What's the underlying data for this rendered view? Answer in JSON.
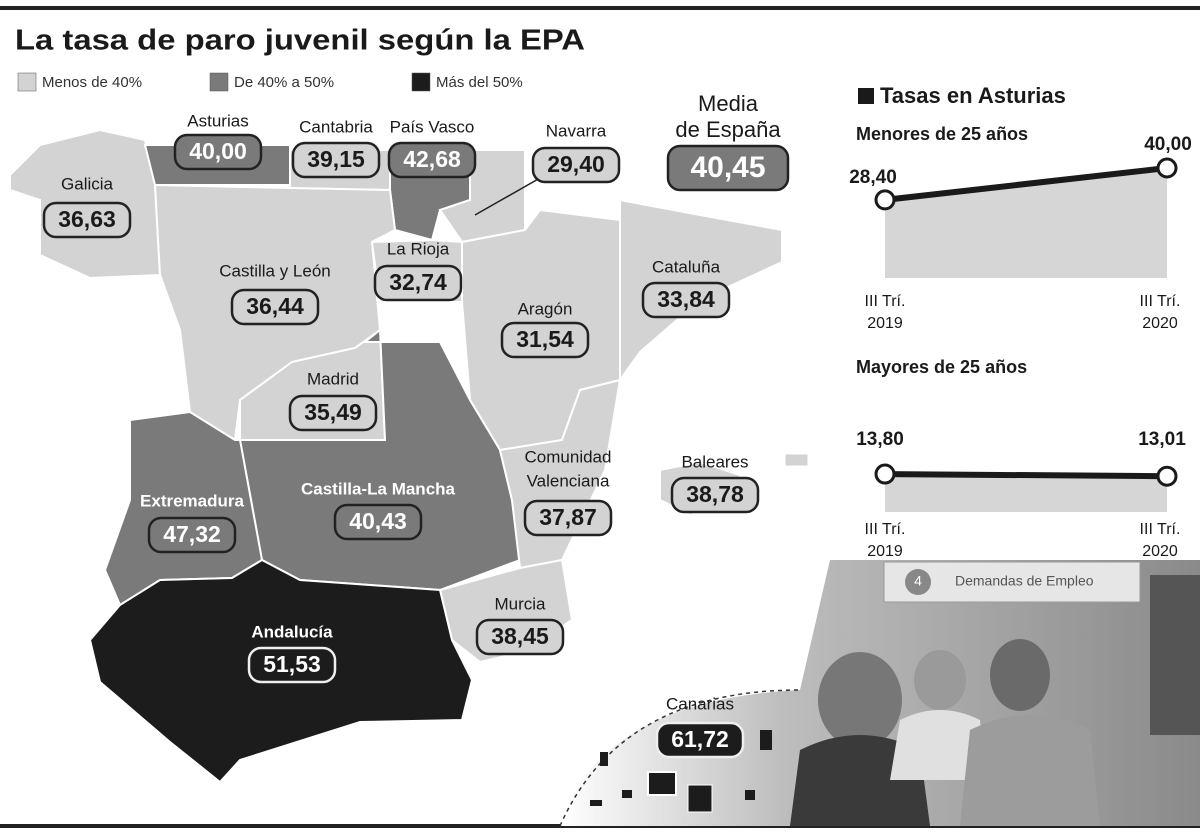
{
  "header": {
    "title": "La tasa de paro juvenil según la EPA"
  },
  "legend": [
    {
      "label": "Menos de 40%",
      "color": "#d3d3d3"
    },
    {
      "label": "De 40% a 50%",
      "color": "#7a7a7a"
    },
    {
      "label": "Más del 50%",
      "color": "#1c1c1c"
    }
  ],
  "regions": [
    {
      "name": "Galicia",
      "value": "36,63",
      "color": "#d3d3d3"
    },
    {
      "name": "Asturias",
      "value": "40,00",
      "color": "#7a7a7a"
    },
    {
      "name": "Cantabria",
      "value": "39,15",
      "color": "#d3d3d3"
    },
    {
      "name": "País Vasco",
      "value": "42,68",
      "color": "#7a7a7a"
    },
    {
      "name": "Navarra",
      "value": "29,40",
      "color": "#d3d3d3"
    },
    {
      "name": "Castilla y León",
      "value": "36,44",
      "color": "#d3d3d3"
    },
    {
      "name": "La Rioja",
      "value": "32,74",
      "color": "#d3d3d3"
    },
    {
      "name": "Aragón",
      "value": "31,54",
      "color": "#d3d3d3"
    },
    {
      "name": "Cataluña",
      "value": "33,84",
      "color": "#d3d3d3"
    },
    {
      "name": "Madrid",
      "value": "35,49",
      "color": "#d3d3d3"
    },
    {
      "name": "Castilla-La Mancha",
      "value": "40,43",
      "color": "#7a7a7a"
    },
    {
      "name": "Extremadura",
      "value": "47,32",
      "color": "#7a7a7a"
    },
    {
      "name": [
        "Comunidad",
        "Valenciana"
      ],
      "value": "37,87",
      "color": "#d3d3d3"
    },
    {
      "name": "Baleares",
      "value": "38,78",
      "color": "#d3d3d3"
    },
    {
      "name": "Murcia",
      "value": "38,45",
      "color": "#d3d3d3"
    },
    {
      "name": "Andalucía",
      "value": "51,53",
      "color": "#1c1c1c"
    },
    {
      "name": "Canarias",
      "value": "61,72",
      "color": "#1c1c1c"
    }
  ],
  "average": {
    "label": [
      "Media",
      "de España"
    ],
    "value": "40,45",
    "color": "#7a7a7a"
  },
  "asturias": {
    "title": "Tasas en Asturias",
    "charts": [
      {
        "title": "Menores de 25 años",
        "categories": [
          [
            "III Trí.",
            "2019"
          ],
          [
            "III Trí.",
            "2020"
          ]
        ],
        "values": [
          28.4,
          40.0
        ],
        "value_labels": [
          "28,40",
          "40,00"
        ]
      },
      {
        "title": "Mayores de 25 años",
        "categories": [
          [
            "III Trí.",
            "2019"
          ],
          [
            "III Trí.",
            "2020"
          ]
        ],
        "values": [
          13.8,
          13.01
        ],
        "value_labels": [
          "13,80",
          "13,01"
        ]
      }
    ]
  },
  "photo": {
    "sign_number": "4",
    "sign": "Demandas de Empleo"
  }
}
